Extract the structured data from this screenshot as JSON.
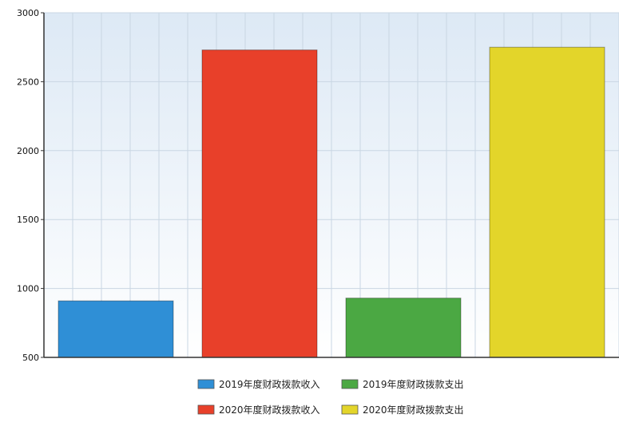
{
  "chart_data": {
    "type": "bar",
    "title": "",
    "xlabel": "",
    "ylabel": "",
    "ylim": [
      500,
      3000
    ],
    "yticks": [
      500,
      1000,
      1500,
      2000,
      2500,
      3000
    ],
    "grid": true,
    "legend_position": "bottom",
    "series": [
      {
        "name": "2019年度财政拨款收入",
        "value": 910,
        "color": "#2f8fd6"
      },
      {
        "name": "2020年度财政拨款收入",
        "value": 2730,
        "color": "#e8402a"
      },
      {
        "name": "2019年度财政拨款支出",
        "value": 930,
        "color": "#4ba843"
      },
      {
        "name": "2020年度财政拨款支出",
        "value": 2750,
        "color": "#e3d52a"
      }
    ],
    "legend_order": [
      0,
      2,
      1,
      3
    ]
  }
}
